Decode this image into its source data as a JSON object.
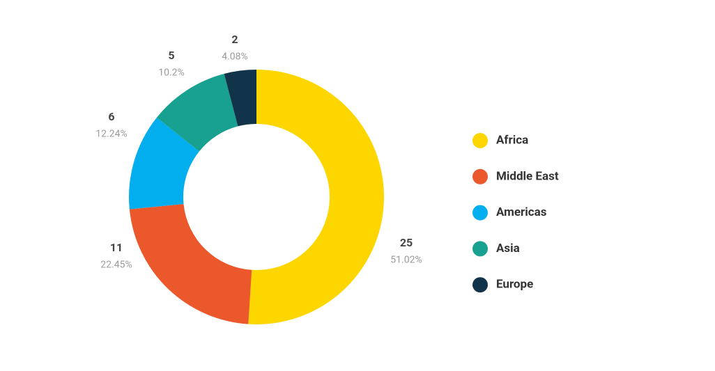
{
  "chart_data": {
    "type": "donut",
    "categories": [
      "Africa",
      "Middle East",
      "Americas",
      "Asia",
      "Europe"
    ],
    "values": [
      25,
      11,
      6,
      5,
      2
    ],
    "percent_labels": [
      "51.02%",
      "22.45%",
      "12.24%",
      "10.2%",
      "4.08%"
    ],
    "colors": [
      "#fdd600",
      "#ea582b",
      "#03aeef",
      "#18a190",
      "#12344a"
    ],
    "legend": "right"
  }
}
